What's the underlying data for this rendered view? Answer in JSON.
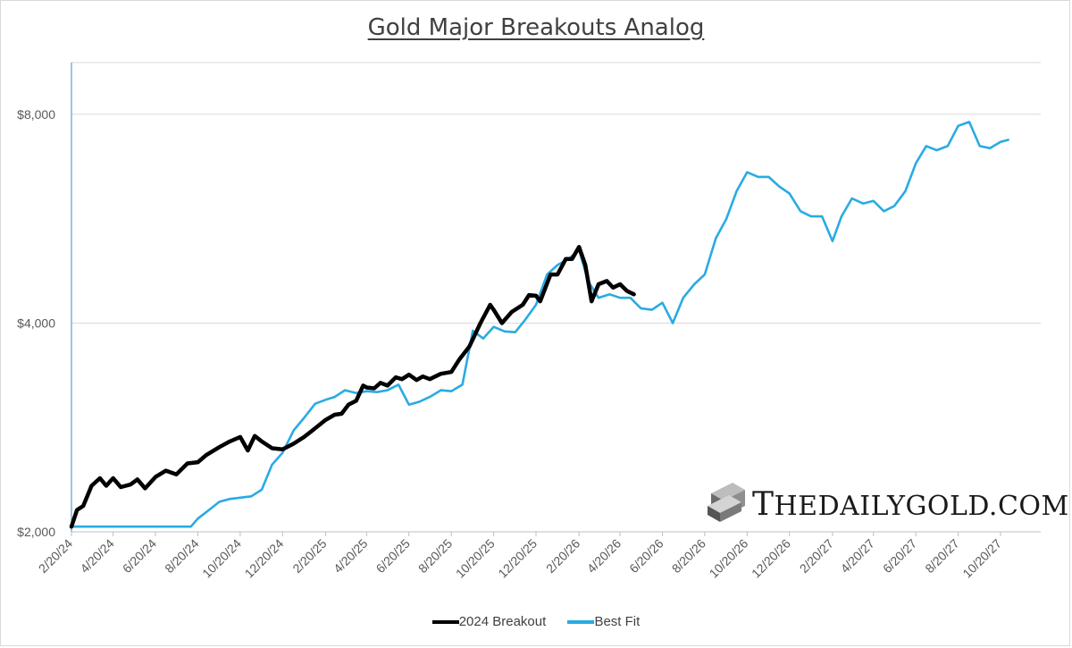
{
  "chart_data": {
    "type": "line",
    "title": "Gold Major Breakouts Analog",
    "xlabel": "",
    "ylabel": "",
    "x_ticks": [
      "2/20/24",
      "4/20/24",
      "6/20/24",
      "8/20/24",
      "10/20/24",
      "12/20/24",
      "2/20/25",
      "4/20/25",
      "6/20/25",
      "8/20/25",
      "10/20/25",
      "12/20/25",
      "2/20/26",
      "4/20/26",
      "6/20/26",
      "8/20/26",
      "10/20/26",
      "12/20/26",
      "2/20/27",
      "4/20/27",
      "6/20/27",
      "8/20/27",
      "10/20/27"
    ],
    "y_ticks": [
      "$2,000",
      "$4,000",
      "$8,000"
    ],
    "y_tick_values": [
      2000,
      4000,
      8000
    ],
    "y_scale": "log",
    "ylim": [
      2000,
      9500
    ],
    "grid": true,
    "legend": "bottom-center",
    "colors": {
      "2024 Breakout": "#000000",
      "Best Fit": "#29abe2"
    },
    "series": [
      {
        "name": "2024 Breakout",
        "x": [
          "2/20/24",
          "2/28/24",
          "3/8/24",
          "3/20/24",
          "4/1/24",
          "4/10/24",
          "4/20/24",
          "5/1/24",
          "5/15/24",
          "5/25/24",
          "6/5/24",
          "6/20/24",
          "7/5/24",
          "7/20/24",
          "8/5/24",
          "8/20/24",
          "9/1/24",
          "9/20/24",
          "10/5/24",
          "10/20/24",
          "10/31/24",
          "11/10/24",
          "11/20/24",
          "12/5/24",
          "12/20/24",
          "1/5/25",
          "1/20/25",
          "2/1/25",
          "2/20/25",
          "3/5/25",
          "3/15/25",
          "3/25/25",
          "4/5/25",
          "4/15/25",
          "4/20/25",
          "5/1/25",
          "5/10/25",
          "5/20/25",
          "6/1/25",
          "6/10/25",
          "6/20/25",
          "7/1/25",
          "7/10/25",
          "7/20/25",
          "8/5/25",
          "8/20/25",
          "9/1/25",
          "9/15/25",
          "10/1/25",
          "10/15/25",
          "10/20/25",
          "11/1/25",
          "11/15/25",
          "12/1/25",
          "12/10/25",
          "12/20/25",
          "12/26/25",
          "1/10/26",
          "1/20/26",
          "2/1/26",
          "2/10/26",
          "2/20/26",
          "3/1/26",
          "3/10/26",
          "3/20/26",
          "4/1/26",
          "4/10/26",
          "4/20/26",
          "4/30/26",
          "5/10/26"
        ],
        "values": [
          2035,
          2150,
          2180,
          2330,
          2390,
          2330,
          2390,
          2320,
          2340,
          2380,
          2310,
          2400,
          2450,
          2420,
          2510,
          2520,
          2580,
          2650,
          2700,
          2740,
          2620,
          2750,
          2700,
          2640,
          2630,
          2680,
          2740,
          2800,
          2900,
          2950,
          2960,
          3050,
          3090,
          3250,
          3230,
          3220,
          3280,
          3250,
          3340,
          3320,
          3370,
          3310,
          3350,
          3320,
          3380,
          3400,
          3550,
          3700,
          4000,
          4250,
          4180,
          4000,
          4150,
          4250,
          4390,
          4380,
          4300,
          4700,
          4700,
          4950,
          4950,
          5150,
          4850,
          4300,
          4550,
          4600,
          4500,
          4550,
          4450,
          4400
        ]
      },
      {
        "name": "Best Fit",
        "x": [
          "2/20/24",
          "4/20/24",
          "6/20/24",
          "8/10/24",
          "8/20/24",
          "9/5/24",
          "9/20/24",
          "10/5/24",
          "10/20/24",
          "11/5/24",
          "11/20/24",
          "12/5/24",
          "12/20/24",
          "1/5/25",
          "1/20/25",
          "2/5/25",
          "2/20/25",
          "3/5/25",
          "3/20/25",
          "4/5/25",
          "4/20/25",
          "5/5/25",
          "5/20/25",
          "6/5/25",
          "6/20/25",
          "7/5/25",
          "7/20/25",
          "8/5/25",
          "8/20/25",
          "9/5/25",
          "9/20/25",
          "10/5/25",
          "10/20/25",
          "11/5/25",
          "11/20/25",
          "12/5/25",
          "12/20/25",
          "1/5/26",
          "1/20/26",
          "2/5/26",
          "2/20/26",
          "3/5/26",
          "3/20/26",
          "4/5/26",
          "4/20/26",
          "5/5/26",
          "5/20/26",
          "6/5/26",
          "6/20/26",
          "7/5/26",
          "7/20/26",
          "8/5/26",
          "8/20/26",
          "9/5/26",
          "9/20/26",
          "10/5/26",
          "10/20/26",
          "11/5/26",
          "11/20/26",
          "12/5/26",
          "12/20/26",
          "1/5/27",
          "1/20/27",
          "2/5/27",
          "2/20/27",
          "3/5/27",
          "3/20/27",
          "4/5/27",
          "4/20/27",
          "5/5/27",
          "5/20/27",
          "6/5/27",
          "6/20/27",
          "7/5/27",
          "7/20/27",
          "8/5/27",
          "8/20/27",
          "9/5/27",
          "9/20/27",
          "10/5/27",
          "10/20/27",
          "10/31/27"
        ],
        "values": [
          2035,
          2035,
          2035,
          2035,
          2090,
          2150,
          2210,
          2230,
          2240,
          2250,
          2300,
          2500,
          2600,
          2800,
          2920,
          3060,
          3100,
          3130,
          3200,
          3170,
          3190,
          3180,
          3200,
          3260,
          3050,
          3080,
          3130,
          3200,
          3190,
          3260,
          3900,
          3800,
          3950,
          3890,
          3880,
          4050,
          4250,
          4700,
          4850,
          4950,
          5100,
          4600,
          4350,
          4400,
          4350,
          4350,
          4200,
          4180,
          4280,
          4000,
          4350,
          4550,
          4700,
          5300,
          5650,
          6200,
          6600,
          6500,
          6500,
          6300,
          6150,
          5800,
          5700,
          5700,
          5250,
          5700,
          6050,
          5950,
          6000,
          5800,
          5900,
          6200,
          6800,
          7200,
          7100,
          7200,
          7700,
          7800,
          7200,
          7150,
          7300,
          7350
        ]
      }
    ]
  },
  "legend": {
    "items": [
      {
        "label": "2024 Breakout"
      },
      {
        "label": "Best Fit"
      }
    ]
  },
  "watermark": {
    "text_big_t": "T",
    "text_rest": "HEDAILYGOLD.COM"
  }
}
